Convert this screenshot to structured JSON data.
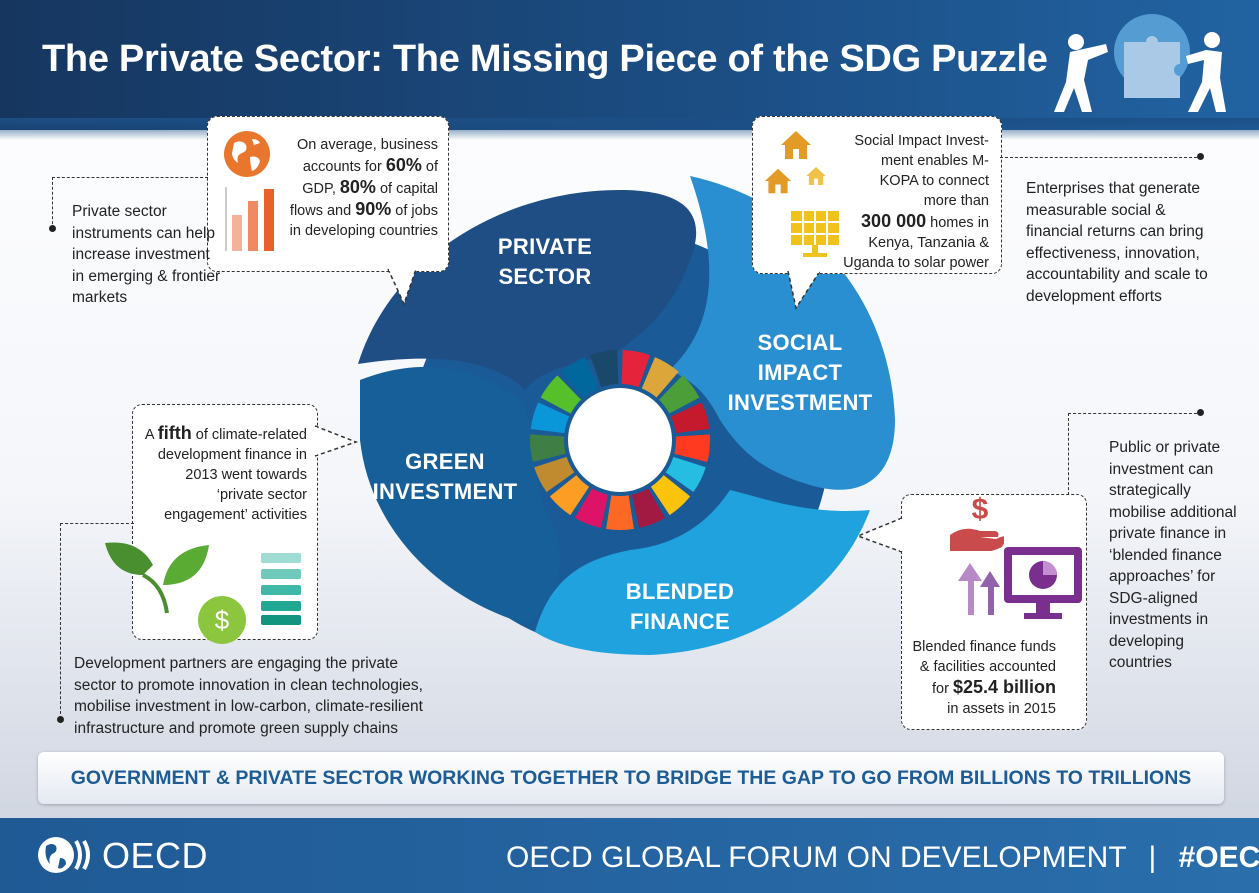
{
  "title": "The Private Sector: The Missing Piece of the SDG Puzzle",
  "petals": {
    "private_sector": [
      "PRIVATE",
      "SECTOR"
    ],
    "social_impact": [
      "SOCIAL",
      "IMPACT",
      "INVESTMENT"
    ],
    "green_investment": [
      "GREEN",
      "INVESTMENT"
    ],
    "blended_finance": [
      "BLENDED",
      "FINANCE"
    ]
  },
  "callouts": {
    "business": {
      "prefix": "On average, business accounts for ",
      "v1": "60%",
      "mid1": " of GDP, ",
      "v2": "80%",
      "mid2": " of capital flows and ",
      "v3": "90%",
      "suffix": " of jobs in developing countries"
    },
    "social": {
      "prefix": "Social Impact Invest-ment enables M-KOPA to connect more than",
      "value": "300 000",
      "suffix": " homes in Kenya, Tanzania & Uganda to solar power"
    },
    "green": {
      "prefix": "A ",
      "value": "fifth",
      "suffix": " of climate-related development finance in 2013 went towards ‘private sector engagement’ activities"
    },
    "blended": {
      "prefix": "Blended finance funds & facilities accounted for ",
      "value": "$25.4 billion",
      "suffix": "in assets in 2015"
    }
  },
  "side_texts": {
    "left_top": "Private sector instruments can help increase investment in emerging & frontier markets",
    "right_top": "Enterprises that generate measurable social & financial returns can bring effectiveness, innovation, accountability and scale to development efforts",
    "right_bottom": "Public or private investment can strategically mobilise additional private finance in ‘blended finance approaches’ for SDG-aligned investments in developing countries",
    "left_bottom": "Development partners are engaging the private sector to promote innovation in clean technologies, mobilise investment in low-carbon, climate-resilient infrastructure and promote green supply chains"
  },
  "banner": "GOVERNMENT &  PRIVATE SECTOR WORKING TOGETHER TO BRIDGE THE GAP TO GO FROM BILLIONS TO TRILLIONS",
  "footer": {
    "logo_text": "OECD",
    "forum": "OECD GLOBAL FORUM ON DEVELOPMENT",
    "separator": "|",
    "hashtag": "#OECDgfd"
  },
  "colors": {
    "header": "#1c4f86",
    "private_sector": "#1f4e85",
    "social_impact": "#2a8fd0",
    "green_investment": "#175f99",
    "blended_finance": "#1fa2de",
    "banner_text": "#1d5c95",
    "sdg_wheel": [
      "#e5243b",
      "#dda63a",
      "#4c9f38",
      "#c5192d",
      "#ff3a21",
      "#26bde2",
      "#fcc30b",
      "#a21942",
      "#fd6925",
      "#dd1367",
      "#fd9d24",
      "#bf8b2e",
      "#3f7e44",
      "#0a97d9",
      "#56c02b",
      "#00689d",
      "#19486a"
    ]
  },
  "icons": [
    "globe-icon",
    "bar-chart-icon",
    "house-icon",
    "solar-panel-icon",
    "leaf-icon",
    "dollar-coin-icon",
    "stack-icon",
    "hand-dollar-icon",
    "monitor-pie-icon",
    "arrows-up-icon",
    "puzzle-people-icon",
    "oecd-globe-icon"
  ]
}
